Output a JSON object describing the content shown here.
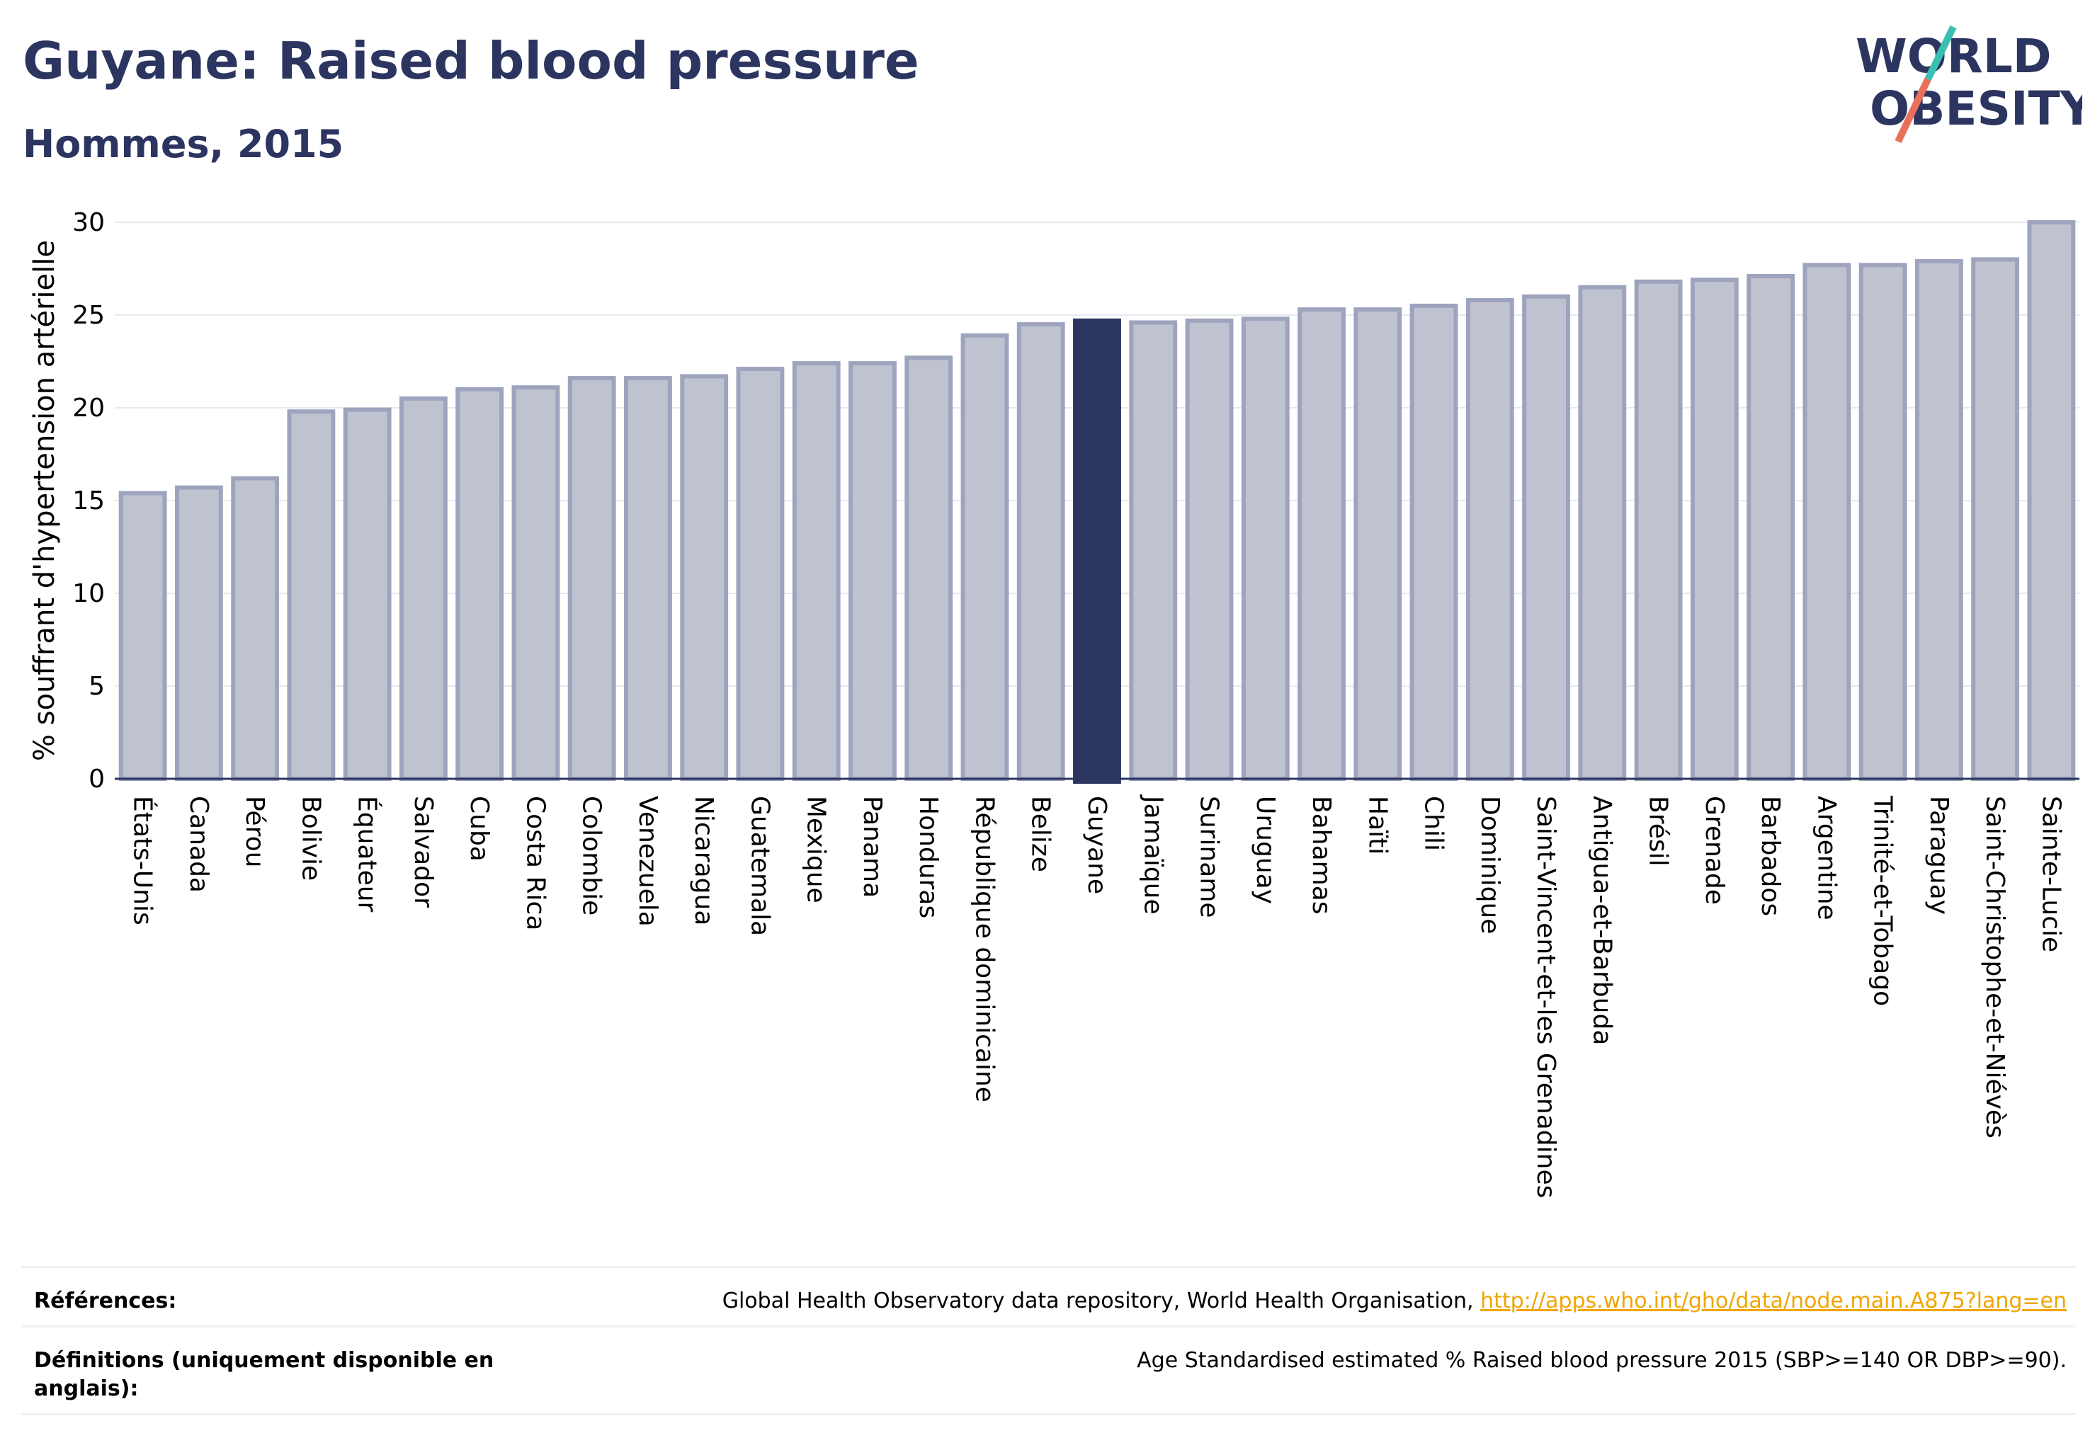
{
  "title": "Guyane: Raised blood pressure",
  "subtitle": "Hommes, 2015",
  "logo": {
    "text_line1": "WORLD",
    "text_line2": "OBESITY",
    "mark_color": "#2c3560",
    "slash_colors": [
      "#3bbfb0",
      "#e8705a"
    ]
  },
  "chart_data": {
    "type": "bar",
    "ylabel": "% souffrant d'hypertension artérielle",
    "ylim": [
      0,
      30
    ],
    "yticks": [
      0,
      5,
      10,
      15,
      20,
      25,
      30
    ],
    "grid": true,
    "categories": [
      "États-Unis",
      "Canada",
      "Pérou",
      "Bolivie",
      "Équateur",
      "Salvador",
      "Cuba",
      "Costa Rica",
      "Colombie",
      "Venezuela",
      "Nicaragua",
      "Guatemala",
      "Mexique",
      "Panama",
      "Honduras",
      "République dominicaine",
      "Belize",
      "Guyane",
      "Jamaïque",
      "Suriname",
      "Uruguay",
      "Bahamas",
      "Haïti",
      "Chili",
      "Dominique",
      "Saint-Vincent-et-les Grenadines",
      "Antigua-et-Barbuda",
      "Brésil",
      "Grenade",
      "Barbados",
      "Argentine",
      "Trinité-et-Tobago",
      "Paraguay",
      "Saint-Christophe-et-Niévès",
      "Sainte-Lucie"
    ],
    "values": [
      15.4,
      15.7,
      16.2,
      19.8,
      19.9,
      20.5,
      21.0,
      21.1,
      21.6,
      21.6,
      21.7,
      22.1,
      22.4,
      22.4,
      22.7,
      23.9,
      24.5,
      24.7,
      24.6,
      24.7,
      24.8,
      25.3,
      25.3,
      25.5,
      25.8,
      26.0,
      26.5,
      26.8,
      26.9,
      27.1,
      27.7,
      27.7,
      27.9,
      28.0,
      30.0
    ],
    "highlight": "Guyane",
    "colors": {
      "bar": "#bfc3d0",
      "bar_border": "#9ea4bd",
      "highlight": "#2c3560",
      "grid": "#e8e9ef",
      "axis": "#2c3560"
    }
  },
  "footer": {
    "references_label": "Références:",
    "references_text": "Global Health Observatory data repository, World Health Organisation,",
    "references_link": "http://apps.who.int/gho/data/node.main.A875?lang=en",
    "definitions_label": "Définitions (uniquement disponible en anglais):",
    "definitions_text": "Age Standardised estimated % Raised blood pressure 2015 (SBP>=140 OR DBP>=90)."
  }
}
